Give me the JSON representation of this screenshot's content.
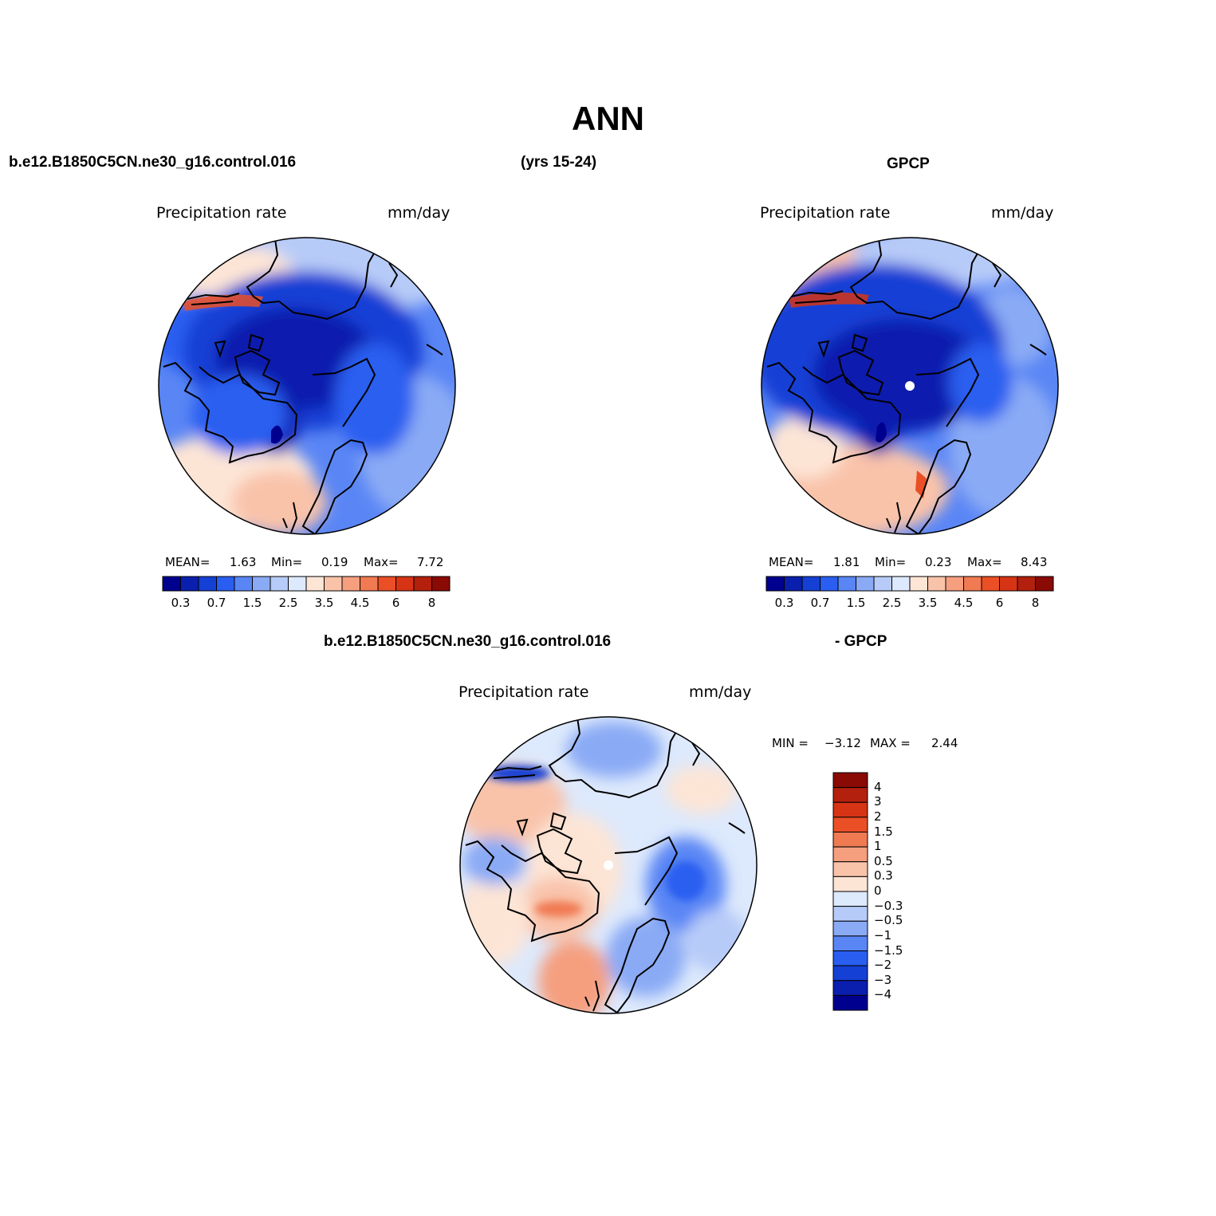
{
  "figure": {
    "title": "ANN",
    "case_name": "b.e12.B1850C5CN.ne30_g16.control.016",
    "years": "(yrs 15-24)",
    "obs_name": "GPCP",
    "diff_title_left": "b.e12.B1850C5CN.ne30_g16.control.016",
    "diff_title_right": "- GPCP"
  },
  "panels": {
    "model": {
      "variable": "Precipitation  rate",
      "units": "mm/day",
      "mean_label": "MEAN=",
      "mean_value": "1.63",
      "min_label": "Min=",
      "min_value": "0.19",
      "max_label": "Max=",
      "max_value": "7.72"
    },
    "obs": {
      "variable": "Precipitation  rate",
      "units": "mm/day",
      "mean_label": "MEAN=",
      "mean_value": "1.81",
      "min_label": "Min=",
      "min_value": "0.23",
      "max_label": "Max=",
      "max_value": "8.43"
    },
    "diff": {
      "variable": "Precipitation  rate",
      "units": "mm/day",
      "min_label": "MIN =",
      "min_value": "−3.12",
      "max_label": "MAX =",
      "max_value": "2.44"
    }
  },
  "colorbar_abs": {
    "colors": [
      "#00008f",
      "#0a1fae",
      "#1540d5",
      "#2a5ef0",
      "#5a86f5",
      "#8aaaf5",
      "#b7cbf8",
      "#dde9fc",
      "#fde5d6",
      "#f9c3aa",
      "#f59f7f",
      "#f07a52",
      "#ea4f26",
      "#d63414",
      "#b3200d",
      "#8a0a05"
    ],
    "labels": [
      "0.3",
      "0.7",
      "1.5",
      "2.5",
      "3.5",
      "4.5",
      "6",
      "8"
    ]
  },
  "colorbar_diff": {
    "colors": [
      "#00008f",
      "#0a1fae",
      "#1540d5",
      "#2a5ef0",
      "#5a86f5",
      "#8aaaf5",
      "#b7cbf8",
      "#dde9fc",
      "#fde5d6",
      "#f9c3aa",
      "#f59f7f",
      "#f07a52",
      "#ea4f26",
      "#d63414",
      "#b3200d",
      "#8a0a05"
    ],
    "labels": [
      "4",
      "3",
      "2",
      "1.5",
      "1",
      "0.5",
      "0.3",
      "0",
      "−0.3",
      "−0.5",
      "−1",
      "−1.5",
      "−2",
      "−3",
      "−4"
    ]
  }
}
